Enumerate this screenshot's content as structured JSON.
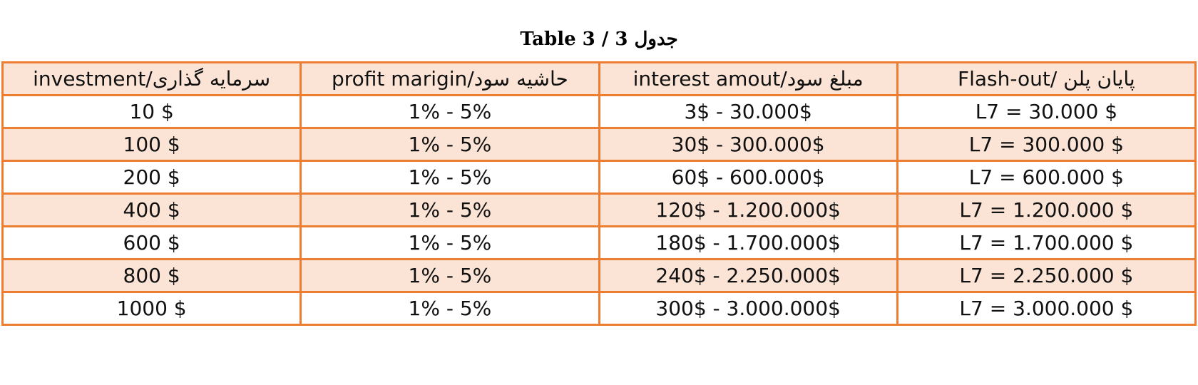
{
  "title": "Table 3 / 3 جدول",
  "table": {
    "header": [
      "investment/سرمایه گذاری",
      "profit marigin/حاشیه سود",
      "interest amout/مبلغ سود",
      "Flash-out/ پایان پلن"
    ],
    "rows": [
      [
        "10 $",
        "1% - 5%",
        "3$ - 30.000$",
        "L7 = 30.000 $"
      ],
      [
        "100 $",
        "1% - 5%",
        "30$ - 300.000$",
        "L7 = 300.000 $"
      ],
      [
        "200 $",
        "1% - 5%",
        "60$ - 600.000$",
        "L7 = 600.000 $"
      ],
      [
        "400 $",
        "1% - 5%",
        "120$ - 1.200.000$",
        "L7 = 1.200.000 $"
      ],
      [
        "600 $",
        "1% - 5%",
        "180$ - 1.700.000$",
        "L7 = 1.700.000 $"
      ],
      [
        "800 $",
        "1% - 5%",
        "240$ - 2.250.000$",
        "L7 = 2.250.000 $"
      ],
      [
        "1000 $",
        "1% - 5%",
        "300$ - 3.000.000$",
        "L7 = 3.000.000 $"
      ]
    ]
  }
}
